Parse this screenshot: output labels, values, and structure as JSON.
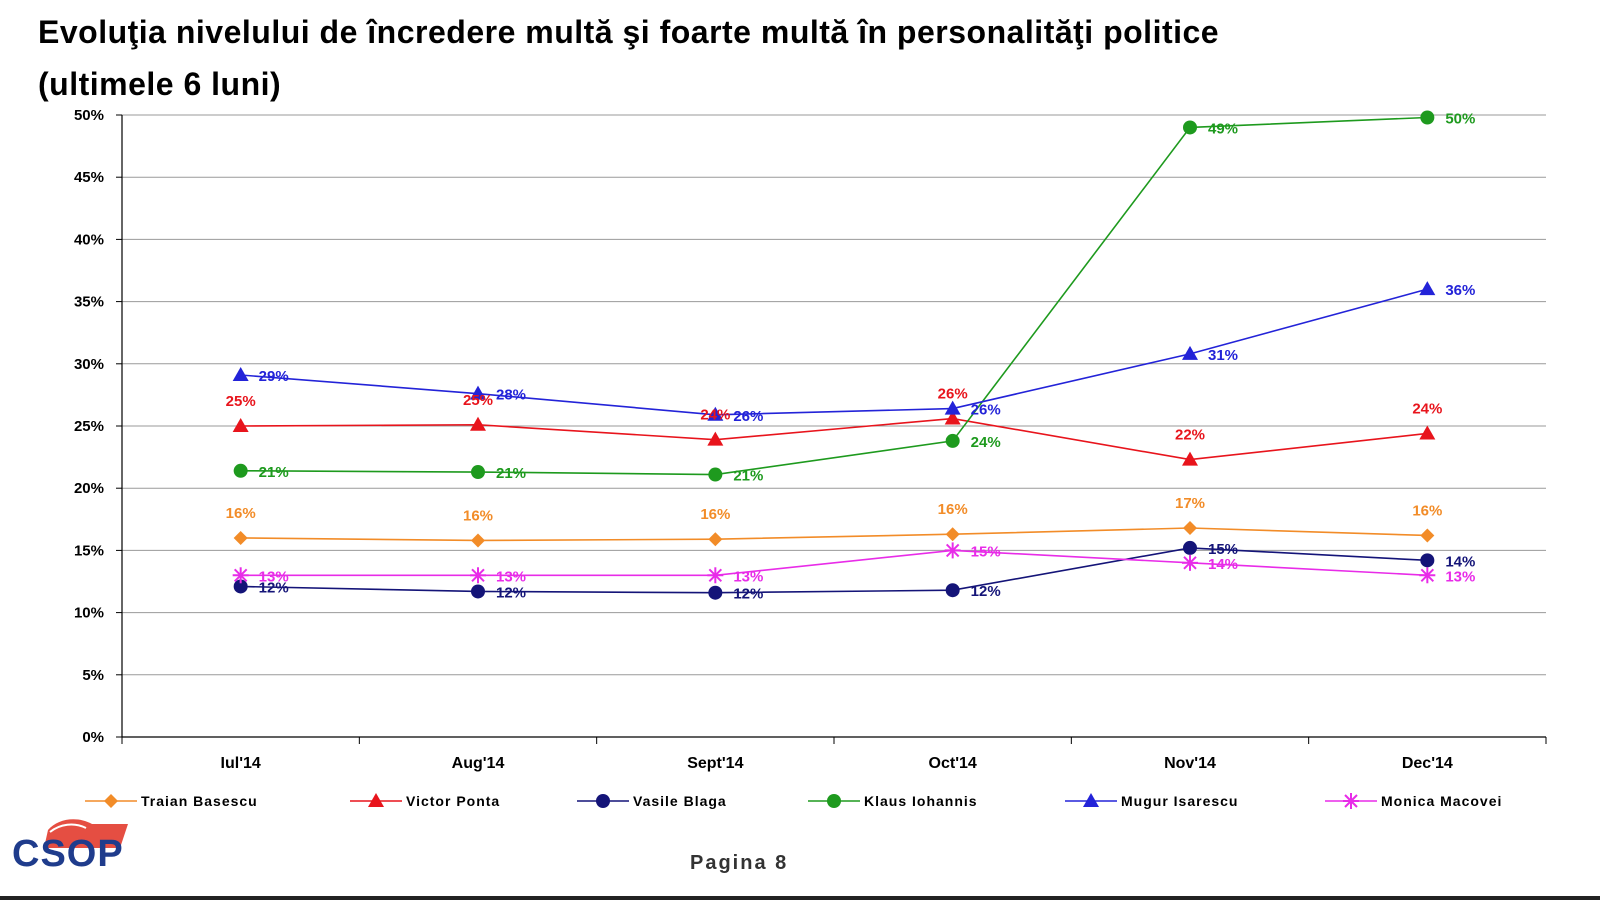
{
  "title_line1": "Evoluţia nivelului de încredere multă şi foarte multă în personalităţi politice",
  "title_line2": "(ultimele 6 luni)",
  "page_label": "Pagina 8",
  "logo_text": "CSOP",
  "chart_data": {
    "type": "line",
    "categories": [
      "Iul'14",
      "Aug'14",
      "Sept'14",
      "Oct'14",
      "Nov'14",
      "Dec'14"
    ],
    "y_ticks": [
      "0%",
      "5%",
      "10%",
      "15%",
      "20%",
      "25%",
      "30%",
      "35%",
      "40%",
      "45%",
      "50%"
    ],
    "ylim": [
      0,
      50
    ],
    "grid": true,
    "legend_position": "bottom",
    "series": [
      {
        "name": "Traian Basescu",
        "color": "#f28c28",
        "marker": "diamond",
        "values": [
          16,
          15.8,
          15.9,
          16.3,
          16.8,
          16.2
        ],
        "labels": [
          "16%",
          "16%",
          "16%",
          "16%",
          "17%",
          "16%"
        ],
        "label_pos": "above"
      },
      {
        "name": "Victor Ponta",
        "color": "#e8141c",
        "marker": "triangle",
        "values": [
          25,
          25.1,
          23.9,
          25.6,
          22.3,
          24.4
        ],
        "labels": [
          "25%",
          "25%",
          "24%",
          "26%",
          "22%",
          "24%"
        ],
        "label_pos": "above"
      },
      {
        "name": "Vasile Blaga",
        "color": "#141478",
        "marker": "circle",
        "values": [
          12.1,
          11.7,
          11.6,
          11.8,
          15.2,
          14.2
        ],
        "labels": [
          "12%",
          "12%",
          "12%",
          "12%",
          "15%",
          "14%"
        ],
        "label_pos": "right"
      },
      {
        "name": "Klaus Iohannis",
        "color": "#1e9a1e",
        "marker": "circle",
        "values": [
          21.4,
          21.3,
          21.1,
          23.8,
          49,
          49.8
        ],
        "labels": [
          "21%",
          "21%",
          "21%",
          "24%",
          "49%",
          "50%"
        ],
        "label_pos": "right"
      },
      {
        "name": "Mugur Isarescu",
        "color": "#2323d8",
        "marker": "triangle",
        "values": [
          29.1,
          27.6,
          25.9,
          26.4,
          30.8,
          36
        ],
        "labels": [
          "29%",
          "28%",
          "26%",
          "26%",
          "31%",
          "36%"
        ],
        "label_pos": "right"
      },
      {
        "name": "Monica Macovei",
        "color": "#e82ce8",
        "marker": "star",
        "values": [
          13,
          13,
          13,
          15,
          14,
          13
        ],
        "labels": [
          "13%",
          "13%",
          "13%",
          "15%",
          "14%",
          "13%"
        ],
        "label_pos": "right"
      }
    ]
  }
}
